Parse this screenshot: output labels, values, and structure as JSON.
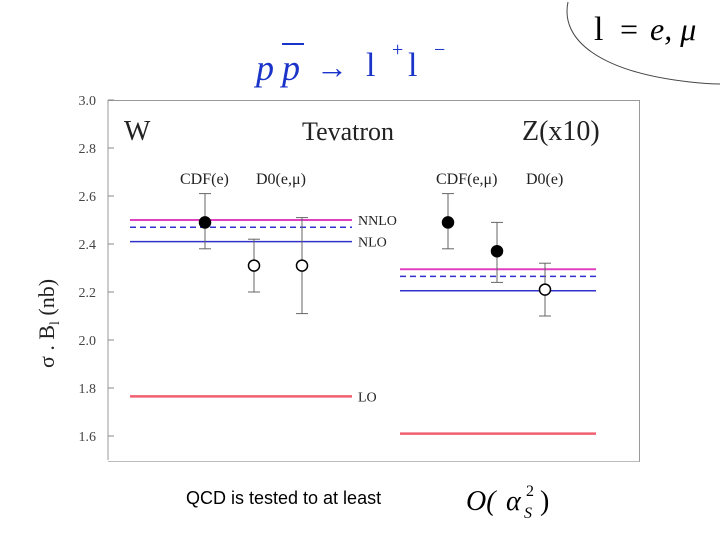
{
  "header": {
    "reaction": {
      "beam1": "p",
      "beam2": "p",
      "arrow": "→",
      "lepton1": "l",
      "plus": "+",
      "lepton2": "l",
      "minus": "−"
    },
    "lepton_definition": {
      "lepton": "l",
      "eq": "=",
      "flavours": "e, μ"
    }
  },
  "caption": {
    "text": "QCD is tested to at least",
    "order": {
      "O": "O(",
      "alpha": "α",
      "sub": "S",
      "sup": "2",
      "close": ")"
    }
  },
  "chart_data": {
    "type": "scatter",
    "title": "Tevatron",
    "panel_labels": {
      "w": "W",
      "z": "Z(x10)"
    },
    "ylabel": {
      "sigma": "σ",
      "dot": " . ",
      "b": "B",
      "sub": "l",
      "unit": " (nb)"
    },
    "ylim": [
      1.5,
      3.0
    ],
    "yticks": [
      "1.6",
      "1.8",
      "2.0",
      "2.2",
      "2.4",
      "2.6",
      "2.8",
      "3.0"
    ],
    "colors": {
      "nnlo": "#e040c0",
      "nlo": "#3030cc",
      "lo": "#f06070",
      "theory_mid": "#3030cc",
      "points": "#000000",
      "errors": "#666666"
    },
    "experiment_labels": {
      "w": [
        "CDF(e)",
        "D0(e,μ)"
      ],
      "z": [
        "CDF(e,μ)",
        "D0(e)"
      ]
    },
    "theory_labels": {
      "nnlo": "NNLO",
      "nlo": "NLO",
      "lo": "LO"
    },
    "theory": {
      "w": {
        "nnlo": 2.5,
        "mid": 2.47,
        "nlo": 2.41,
        "lo": 1.765
      },
      "z": {
        "nnlo": 2.295,
        "mid": 2.265,
        "nlo": 2.205,
        "lo": 1.61
      }
    },
    "measurements": [
      {
        "panel": "w",
        "experiment": "CDF(e)",
        "value": 2.49,
        "err_low": 2.38,
        "err_high": 2.61,
        "filled": true
      },
      {
        "panel": "w",
        "experiment": "D0(e,μ)",
        "value": 2.31,
        "err_low": 2.2,
        "err_high": 2.42,
        "filled": false
      },
      {
        "panel": "w",
        "experiment": "D0(e,μ)",
        "value": 2.31,
        "err_low": 2.11,
        "err_high": 2.51,
        "filled": false
      },
      {
        "panel": "z",
        "experiment": "CDF(e,μ)",
        "value": 2.49,
        "err_low": 2.38,
        "err_high": 2.61,
        "filled": true
      },
      {
        "panel": "z",
        "experiment": "CDF(e,μ)",
        "value": 2.37,
        "err_low": 2.24,
        "err_high": 2.49,
        "filled": true
      },
      {
        "panel": "z",
        "experiment": "D0(e)",
        "value": 2.21,
        "err_low": 2.1,
        "err_high": 2.32,
        "filled": false
      }
    ]
  }
}
